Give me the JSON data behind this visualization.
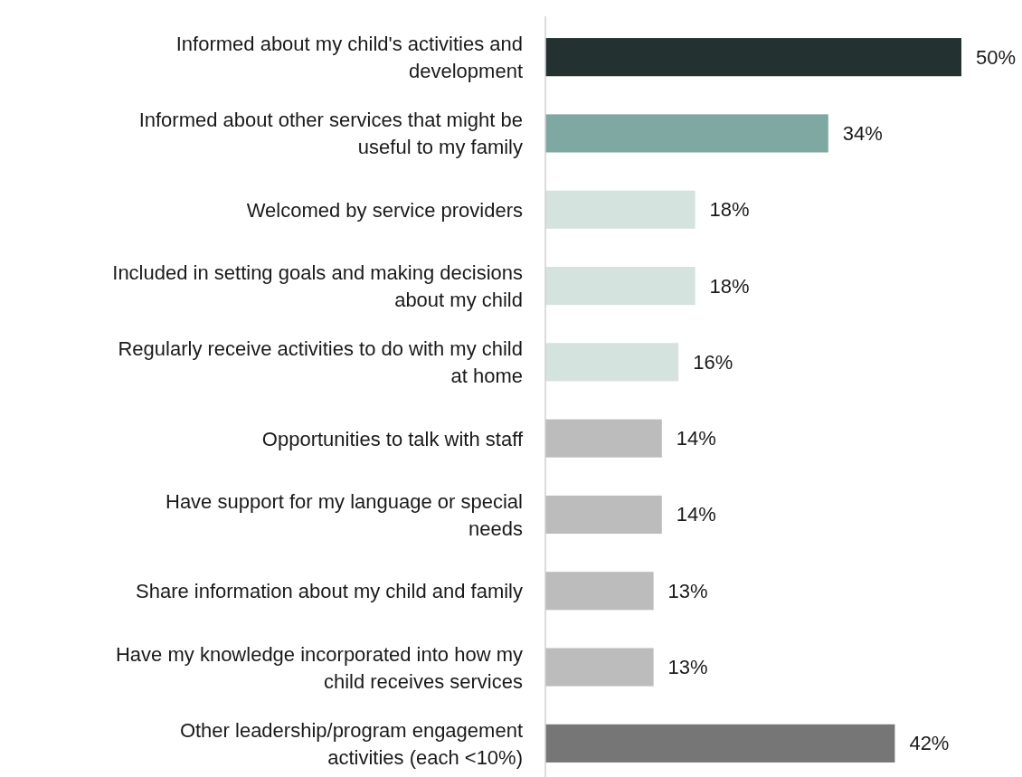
{
  "chart_data": {
    "type": "bar",
    "orientation": "horizontal",
    "categories": [
      "Informed about my child's activities and development",
      "Informed about other services that might be useful to my family",
      "Welcomed by service providers",
      "Included in setting goals and making decisions about my child",
      "Regularly receive activities to do with my child at home",
      "Opportunities to talk with staff",
      "Have support for my language or special needs",
      "Share information about my child and family",
      "Have my knowledge incorporated into how my child receives services",
      "Other leadership/program engagement activities (each <10%)"
    ],
    "values": [
      50,
      34,
      18,
      18,
      16,
      14,
      14,
      13,
      13,
      42
    ],
    "colors": [
      "#233130",
      "#7fa8a3",
      "#d5e3df",
      "#d5e3df",
      "#d5e3df",
      "#bcbcbc",
      "#bcbcbc",
      "#bcbcbc",
      "#bcbcbc",
      "#767676"
    ],
    "value_labels": [
      "50%",
      "34%",
      "18%",
      "18%",
      "16%",
      "14%",
      "14%",
      "13%",
      "13%",
      "42%"
    ]
  }
}
